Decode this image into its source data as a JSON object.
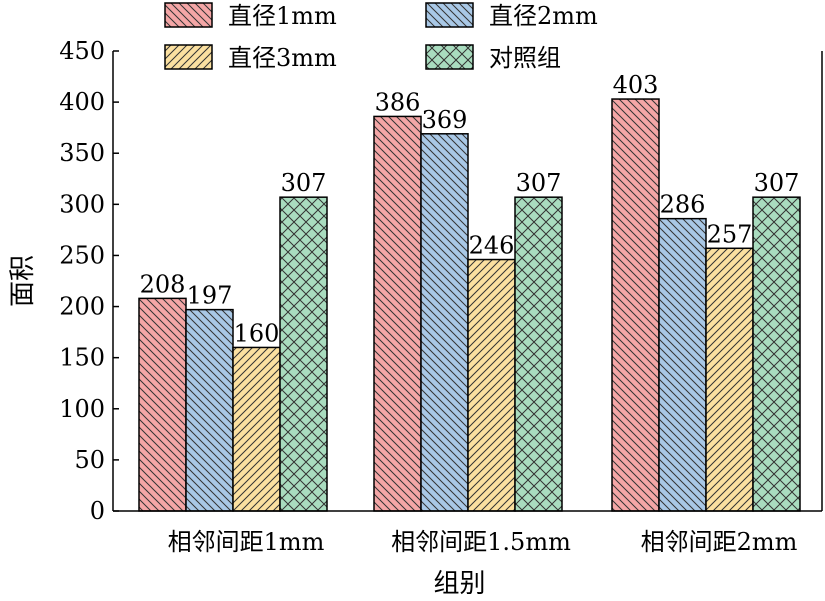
{
  "chart_data": {
    "type": "bar",
    "categories": [
      "相邻间距1mm",
      "相邻间距1.5mm",
      "相邻间距2mm"
    ],
    "series": [
      {
        "name": "直径1mm",
        "values": [
          208,
          386,
          403
        ],
        "color": "#f4a6a6",
        "pattern": "diag-back"
      },
      {
        "name": "直径2mm",
        "values": [
          197,
          369,
          286
        ],
        "color": "#a9c8e6",
        "pattern": "diag-back"
      },
      {
        "name": "直径3mm",
        "values": [
          160,
          246,
          257
        ],
        "color": "#fbe0a0",
        "pattern": "diag-fwd"
      },
      {
        "name": "对照组",
        "values": [
          307,
          307,
          307
        ],
        "color": "#a9dcbf",
        "pattern": "cross"
      }
    ],
    "xlabel": "组别",
    "ylabel": "面积",
    "ylim": [
      0,
      450
    ],
    "yticks": [
      0,
      50,
      100,
      150,
      200,
      250,
      300,
      350,
      400,
      450
    ],
    "grid": false,
    "legend_position": "top",
    "legend_order": [
      0,
      2,
      1,
      3
    ]
  }
}
